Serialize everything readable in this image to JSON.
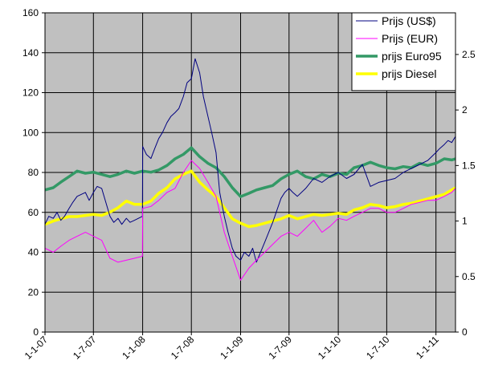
{
  "chart_data": {
    "type": "line",
    "title": "",
    "xlabel": "",
    "ylabel": "",
    "y_left_range": [
      0,
      160
    ],
    "y_left_ticks": [
      0,
      20,
      40,
      60,
      80,
      100,
      120,
      140,
      160
    ],
    "y_left_tick_labels": [
      "0",
      "20",
      "40",
      "60",
      "80",
      "100",
      "120",
      "140",
      "160"
    ],
    "y_right_range": [
      0,
      2.875
    ],
    "y_right_ticks": [
      0,
      0.5,
      1,
      1.5,
      2,
      2.5
    ],
    "y_right_tick_labels": [
      "0",
      "0.5",
      "1",
      "1.5",
      "2",
      "2.5"
    ],
    "x_range": [
      "2007-01-01",
      "2011-03-15"
    ],
    "x_ticks": [
      "2007-01-01",
      "2007-07-01",
      "2008-01-01",
      "2008-07-01",
      "2009-01-01",
      "2009-07-01",
      "2010-01-01",
      "2010-07-01",
      "2011-01-01"
    ],
    "x_tick_labels": [
      "1-1-07",
      "1-7-07",
      "1-1-08",
      "1-7-08",
      "1-1-09",
      "1-7-09",
      "1-1-10",
      "1-7-10",
      "1-1-11"
    ],
    "grid": true,
    "plot_background": "#c0c0c0",
    "legend_position": "top-right",
    "series": [
      {
        "name": "Prijs (US$)",
        "axis": "left",
        "color": "#000080",
        "thickness": "thin",
        "x": [
          "2007-01-01",
          "2007-01-15",
          "2007-02-01",
          "2007-02-15",
          "2007-03-01",
          "2007-03-15",
          "2007-04-01",
          "2007-04-15",
          "2007-05-01",
          "2007-06-01",
          "2007-06-15",
          "2007-07-01",
          "2007-07-15",
          "2007-08-01",
          "2007-09-01",
          "2007-09-15",
          "2007-10-01",
          "2007-10-15",
          "2007-11-01",
          "2007-11-15",
          "2007-12-01",
          "2007-12-31",
          "2008-01-01",
          "2008-01-15",
          "2008-02-01",
          "2008-02-15",
          "2008-03-01",
          "2008-03-15",
          "2008-04-01",
          "2008-04-15",
          "2008-05-01",
          "2008-05-15",
          "2008-06-01",
          "2008-06-15",
          "2008-07-01",
          "2008-07-15",
          "2008-08-01",
          "2008-08-15",
          "2008-09-01",
          "2008-09-15",
          "2008-10-01",
          "2008-10-15",
          "2008-11-01",
          "2008-11-15",
          "2008-12-01",
          "2008-12-15",
          "2009-01-01",
          "2009-01-15",
          "2009-02-01",
          "2009-02-15",
          "2009-03-01",
          "2009-04-01",
          "2009-05-01",
          "2009-06-01",
          "2009-06-15",
          "2009-07-01",
          "2009-07-15",
          "2009-08-01",
          "2009-09-01",
          "2009-10-01",
          "2009-11-01",
          "2009-12-01",
          "2010-01-01",
          "2010-02-01",
          "2010-03-01",
          "2010-04-01",
          "2010-05-01",
          "2010-06-01",
          "2010-07-01",
          "2010-08-01",
          "2010-09-01",
          "2010-10-01",
          "2010-11-01",
          "2010-12-01",
          "2011-01-01",
          "2011-01-15",
          "2011-02-01",
          "2011-02-15",
          "2011-03-01",
          "2011-03-15"
        ],
        "y": [
          54,
          58,
          57,
          60,
          56,
          58,
          62,
          65,
          68,
          70,
          66,
          70,
          73,
          72,
          58,
          55,
          57,
          54,
          57,
          55,
          56,
          58,
          93,
          89,
          87,
          92,
          97,
          100,
          105,
          108,
          110,
          112,
          118,
          125,
          127,
          137,
          130,
          118,
          108,
          100,
          90,
          70,
          58,
          50,
          42,
          38,
          36,
          40,
          38,
          42,
          35,
          45,
          55,
          67,
          70,
          72,
          70,
          68,
          72,
          77,
          75,
          78,
          80,
          77,
          79,
          84,
          73,
          75,
          76,
          77,
          80,
          82,
          84,
          86,
          90,
          92,
          94,
          96,
          95,
          98
        ]
      },
      {
        "name": "Prijs (EUR)",
        "axis": "left",
        "color": "#ff00ff",
        "thickness": "thin",
        "x": [
          "2007-01-01",
          "2007-02-01",
          "2007-03-01",
          "2007-04-01",
          "2007-05-01",
          "2007-06-01",
          "2007-07-01",
          "2007-08-01",
          "2007-09-01",
          "2007-10-01",
          "2007-11-01",
          "2007-12-01",
          "2007-12-31",
          "2008-01-01",
          "2008-02-01",
          "2008-03-01",
          "2008-04-01",
          "2008-05-01",
          "2008-06-01",
          "2008-07-01",
          "2008-08-01",
          "2008-09-01",
          "2008-10-01",
          "2008-11-01",
          "2008-12-01",
          "2009-01-01",
          "2009-02-01",
          "2009-03-01",
          "2009-04-01",
          "2009-05-01",
          "2009-06-01",
          "2009-07-01",
          "2009-08-01",
          "2009-09-01",
          "2009-10-01",
          "2009-11-01",
          "2009-12-01",
          "2010-01-01",
          "2010-02-01",
          "2010-03-01",
          "2010-04-01",
          "2010-05-01",
          "2010-06-01",
          "2010-07-01",
          "2010-08-01",
          "2010-09-01",
          "2010-10-01",
          "2010-11-01",
          "2010-12-01",
          "2011-01-01",
          "2011-02-01",
          "2011-03-01",
          "2011-03-15"
        ],
        "y": [
          42,
          40,
          43,
          46,
          48,
          50,
          48,
          46,
          37,
          35,
          36,
          37,
          38,
          62,
          63,
          66,
          70,
          72,
          80,
          86,
          82,
          75,
          68,
          50,
          38,
          26,
          32,
          36,
          40,
          44,
          48,
          50,
          48,
          52,
          56,
          50,
          53,
          57,
          56,
          58,
          60,
          62,
          62,
          60,
          60,
          62,
          64,
          65,
          66,
          66,
          68,
          70,
          72
        ]
      },
      {
        "name": "prijs Euro95",
        "axis": "right",
        "color": "#339966",
        "thickness": "thick",
        "x": [
          "2007-01-01",
          "2007-02-01",
          "2007-03-01",
          "2007-04-01",
          "2007-05-01",
          "2007-06-01",
          "2007-07-01",
          "2007-08-01",
          "2007-09-01",
          "2007-10-01",
          "2007-11-01",
          "2007-12-01",
          "2008-01-01",
          "2008-02-01",
          "2008-03-01",
          "2008-04-01",
          "2008-05-01",
          "2008-06-01",
          "2008-07-01",
          "2008-08-01",
          "2008-09-01",
          "2008-10-01",
          "2008-11-01",
          "2008-12-01",
          "2009-01-01",
          "2009-02-01",
          "2009-03-01",
          "2009-04-01",
          "2009-05-01",
          "2009-06-01",
          "2009-07-01",
          "2009-08-01",
          "2009-09-01",
          "2009-10-01",
          "2009-11-01",
          "2009-12-01",
          "2010-01-01",
          "2010-02-01",
          "2010-03-01",
          "2010-04-01",
          "2010-05-01",
          "2010-06-01",
          "2010-07-01",
          "2010-08-01",
          "2010-09-01",
          "2010-10-01",
          "2010-11-01",
          "2010-12-01",
          "2011-01-01",
          "2011-02-01",
          "2011-03-01",
          "2011-03-15"
        ],
        "y": [
          1.28,
          1.3,
          1.35,
          1.4,
          1.45,
          1.43,
          1.44,
          1.42,
          1.4,
          1.42,
          1.45,
          1.43,
          1.45,
          1.44,
          1.46,
          1.5,
          1.56,
          1.6,
          1.66,
          1.58,
          1.52,
          1.48,
          1.4,
          1.3,
          1.22,
          1.25,
          1.28,
          1.3,
          1.32,
          1.38,
          1.42,
          1.45,
          1.4,
          1.38,
          1.42,
          1.4,
          1.43,
          1.42,
          1.48,
          1.5,
          1.53,
          1.5,
          1.48,
          1.47,
          1.49,
          1.48,
          1.52,
          1.5,
          1.52,
          1.56,
          1.55,
          1.56
        ]
      },
      {
        "name": "prijs Diesel",
        "axis": "right",
        "color": "#ffff00",
        "thickness": "thick",
        "x": [
          "2007-01-01",
          "2007-02-01",
          "2007-03-01",
          "2007-04-01",
          "2007-05-01",
          "2007-06-01",
          "2007-07-01",
          "2007-08-01",
          "2007-09-01",
          "2007-10-01",
          "2007-11-01",
          "2007-12-01",
          "2008-01-01",
          "2008-02-01",
          "2008-03-01",
          "2008-04-01",
          "2008-05-01",
          "2008-06-01",
          "2008-07-01",
          "2008-08-01",
          "2008-09-01",
          "2008-10-01",
          "2008-11-01",
          "2008-12-01",
          "2009-01-01",
          "2009-02-01",
          "2009-03-01",
          "2009-04-01",
          "2009-05-01",
          "2009-06-01",
          "2009-07-01",
          "2009-08-01",
          "2009-09-01",
          "2009-10-01",
          "2009-11-01",
          "2009-12-01",
          "2010-01-01",
          "2010-02-01",
          "2010-03-01",
          "2010-04-01",
          "2010-05-01",
          "2010-06-01",
          "2010-07-01",
          "2010-08-01",
          "2010-09-01",
          "2010-10-01",
          "2010-11-01",
          "2010-12-01",
          "2011-01-01",
          "2011-02-01",
          "2011-03-01",
          "2011-03-15"
        ],
        "y": [
          0.97,
          1.0,
          1.02,
          1.04,
          1.04,
          1.05,
          1.06,
          1.05,
          1.08,
          1.12,
          1.18,
          1.15,
          1.15,
          1.18,
          1.25,
          1.3,
          1.38,
          1.42,
          1.45,
          1.35,
          1.28,
          1.22,
          1.12,
          1.02,
          0.98,
          0.95,
          0.96,
          0.98,
          1.0,
          1.02,
          1.05,
          1.02,
          1.04,
          1.06,
          1.05,
          1.06,
          1.07,
          1.06,
          1.1,
          1.12,
          1.15,
          1.14,
          1.12,
          1.13,
          1.15,
          1.16,
          1.18,
          1.2,
          1.22,
          1.24,
          1.28,
          1.3
        ]
      }
    ]
  }
}
